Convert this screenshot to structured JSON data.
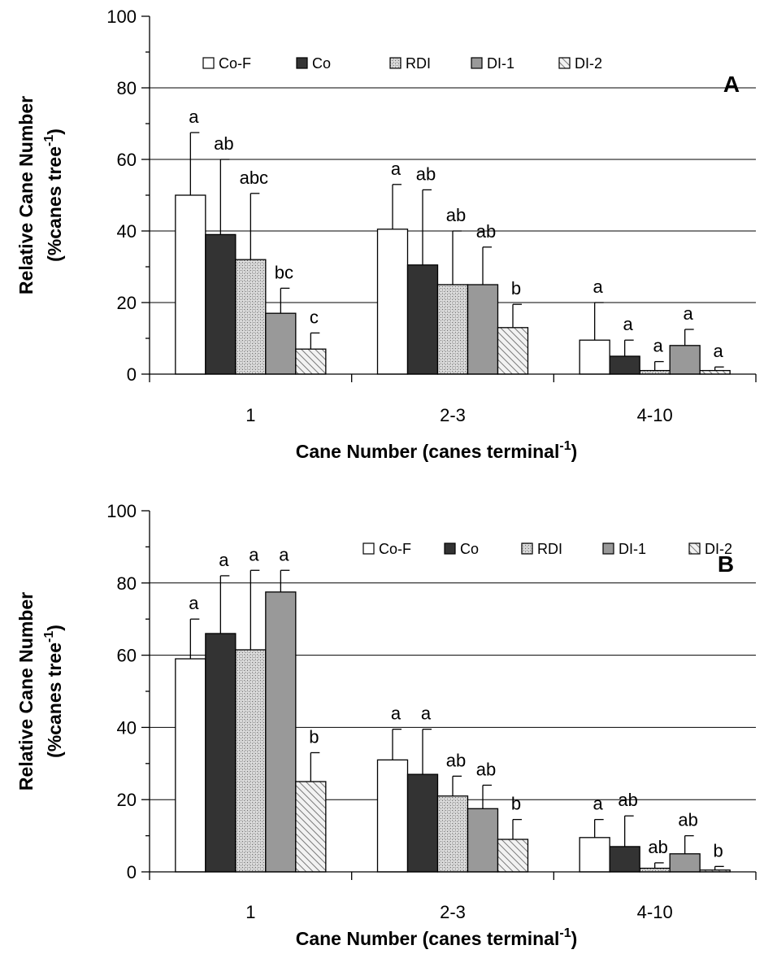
{
  "chart_data": [
    {
      "type": "bar",
      "panel_label": "A",
      "categories": [
        "1",
        "2-3",
        "4-10"
      ],
      "xlabel": {
        "text": "Cane Number (canes terminal",
        "superscript": "-1",
        "close": ")"
      },
      "ylabel": {
        "line1": "Relative Cane Number",
        "line2_text": "(%canes tree",
        "line2_superscript": "-1",
        "line2_close": ")"
      },
      "ylim": [
        0,
        100
      ],
      "yticks": [
        "0",
        "20",
        "40",
        "60",
        "80",
        "100"
      ],
      "grid": "horizontal at 20, 40, 60, 80",
      "legend_position": "top",
      "series": [
        {
          "name": "Co-F",
          "fill": "white",
          "values": [
            50,
            40.5,
            9.5
          ],
          "errors": [
            17.5,
            12.5,
            10.5
          ],
          "letters": [
            "a",
            "a",
            "a"
          ]
        },
        {
          "name": "Co",
          "fill": "#333333",
          "values": [
            39,
            30.5,
            5
          ],
          "errors": [
            21,
            21,
            4.5
          ],
          "letters": [
            "ab",
            "ab",
            "a"
          ]
        },
        {
          "name": "RDI",
          "fill": "dotted",
          "values": [
            32,
            25,
            1
          ],
          "errors": [
            18.5,
            15,
            2.5
          ],
          "letters": [
            "abc",
            "ab",
            "a"
          ]
        },
        {
          "name": "DI-1",
          "fill": "#999999",
          "values": [
            17,
            25,
            8
          ],
          "errors": [
            7,
            10.5,
            4.5
          ],
          "letters": [
            "bc",
            "ab",
            "a"
          ]
        },
        {
          "name": "DI-2",
          "fill": "hatched",
          "values": [
            7,
            13,
            1
          ],
          "errors": [
            4.5,
            6.5,
            1
          ],
          "letters": [
            "c",
            "b",
            "a"
          ]
        }
      ]
    },
    {
      "type": "bar",
      "panel_label": "B",
      "categories": [
        "1",
        "2-3",
        "4-10"
      ],
      "xlabel": {
        "text": "Cane Number (canes terminal",
        "superscript": "-1",
        "close": ")"
      },
      "ylabel": {
        "line1": "Relative Cane Number",
        "line2_text": "(%canes tree",
        "line2_superscript": "-1",
        "line2_close": ")"
      },
      "ylim": [
        0,
        100
      ],
      "yticks": [
        "0",
        "20",
        "40",
        "60",
        "80",
        "100"
      ],
      "grid": "horizontal at 20, 40, 60, 80",
      "legend_position": "top-right",
      "series": [
        {
          "name": "Co-F",
          "fill": "white",
          "values": [
            59,
            31,
            9.5
          ],
          "errors": [
            11,
            8.5,
            5
          ],
          "letters": [
            "a",
            "a",
            "a"
          ]
        },
        {
          "name": "Co",
          "fill": "#333333",
          "values": [
            66,
            27,
            7
          ],
          "errors": [
            16,
            12.5,
            8.5
          ],
          "letters": [
            "a",
            "a",
            "ab"
          ]
        },
        {
          "name": "RDI",
          "fill": "dotted",
          "values": [
            61.5,
            21,
            1
          ],
          "errors": [
            22,
            5.5,
            1.5
          ],
          "letters": [
            "a",
            "ab",
            "ab"
          ]
        },
        {
          "name": "DI-1",
          "fill": "#999999",
          "values": [
            77.5,
            17.5,
            5
          ],
          "errors": [
            6,
            6.5,
            5
          ],
          "letters": [
            "a",
            "ab",
            "ab"
          ]
        },
        {
          "name": "DI-2",
          "fill": "hatched",
          "values": [
            25,
            9,
            0.5
          ],
          "errors": [
            8,
            5.5,
            1
          ],
          "letters": [
            "b",
            "b",
            "b"
          ]
        }
      ]
    }
  ]
}
